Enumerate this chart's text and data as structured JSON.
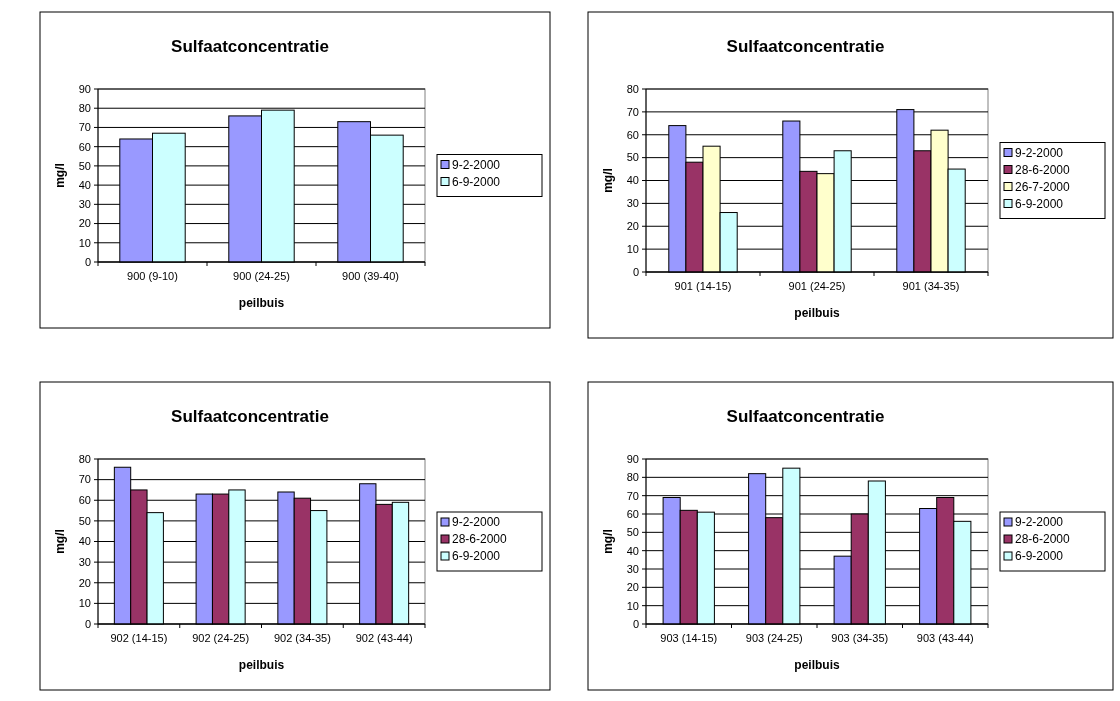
{
  "chart_data": [
    {
      "type": "bar",
      "title": "Sulfaatconcentratie",
      "xlabel": "peilbuis",
      "ylabel": "mg/l",
      "categories": [
        "900 (9-10)",
        "900 (24-25)",
        "900 (39-40)"
      ],
      "series": [
        {
          "name": "9-2-2000",
          "color": "#9999ff",
          "values": [
            64,
            76,
            73
          ]
        },
        {
          "name": "6-9-2000",
          "color": "#ccffff",
          "values": [
            67,
            79,
            66
          ]
        }
      ],
      "ylim": [
        0,
        90
      ],
      "yticks": [
        0,
        10,
        20,
        30,
        40,
        50,
        60,
        70,
        80,
        90
      ],
      "grid": "y",
      "legend": "right"
    },
    {
      "type": "bar",
      "title": "Sulfaatconcentratie",
      "xlabel": "peilbuis",
      "ylabel": "mg/l",
      "categories": [
        "901 (14-15)",
        "901 (24-25)",
        "901 (34-35)"
      ],
      "series": [
        {
          "name": "9-2-2000",
          "color": "#9999ff",
          "values": [
            64,
            66,
            71
          ]
        },
        {
          "name": "28-6-2000",
          "color": "#993366",
          "values": [
            48,
            44,
            53
          ]
        },
        {
          "name": "26-7-2000",
          "color": "#ffffcc",
          "values": [
            55,
            43,
            62
          ]
        },
        {
          "name": "6-9-2000",
          "color": "#ccffff",
          "values": [
            26,
            53,
            45
          ]
        }
      ],
      "ylim": [
        0,
        80
      ],
      "yticks": [
        0,
        10,
        20,
        30,
        40,
        50,
        60,
        70,
        80
      ],
      "grid": "y",
      "legend": "right"
    },
    {
      "type": "bar",
      "title": "Sulfaatconcentratie",
      "xlabel": "peilbuis",
      "ylabel": "mg/l",
      "categories": [
        "902 (14-15)",
        "902 (24-25)",
        "902 (34-35)",
        "902 (43-44)"
      ],
      "series": [
        {
          "name": "9-2-2000",
          "color": "#9999ff",
          "values": [
            76,
            63,
            64,
            68
          ]
        },
        {
          "name": "28-6-2000",
          "color": "#993366",
          "values": [
            65,
            63,
            61,
            58
          ]
        },
        {
          "name": "6-9-2000",
          "color": "#ccffff",
          "values": [
            54,
            65,
            55,
            59
          ]
        }
      ],
      "ylim": [
        0,
        80
      ],
      "yticks": [
        0,
        10,
        20,
        30,
        40,
        50,
        60,
        70,
        80
      ],
      "grid": "y",
      "legend": "right"
    },
    {
      "type": "bar",
      "title": "Sulfaatconcentratie",
      "xlabel": "peilbuis",
      "ylabel": "mg/l",
      "categories": [
        "903 (14-15)",
        "903 (24-25)",
        "903 (34-35)",
        "903 (43-44)"
      ],
      "series": [
        {
          "name": "9-2-2000",
          "color": "#9999ff",
          "values": [
            69,
            82,
            37,
            63
          ]
        },
        {
          "name": "28-6-2000",
          "color": "#993366",
          "values": [
            62,
            58,
            60,
            69
          ]
        },
        {
          "name": "6-9-2000",
          "color": "#ccffff",
          "values": [
            61,
            85,
            78,
            56
          ]
        }
      ],
      "ylim": [
        0,
        90
      ],
      "yticks": [
        0,
        10,
        20,
        30,
        40,
        50,
        60,
        70,
        80,
        90
      ],
      "grid": "y",
      "legend": "right"
    }
  ]
}
